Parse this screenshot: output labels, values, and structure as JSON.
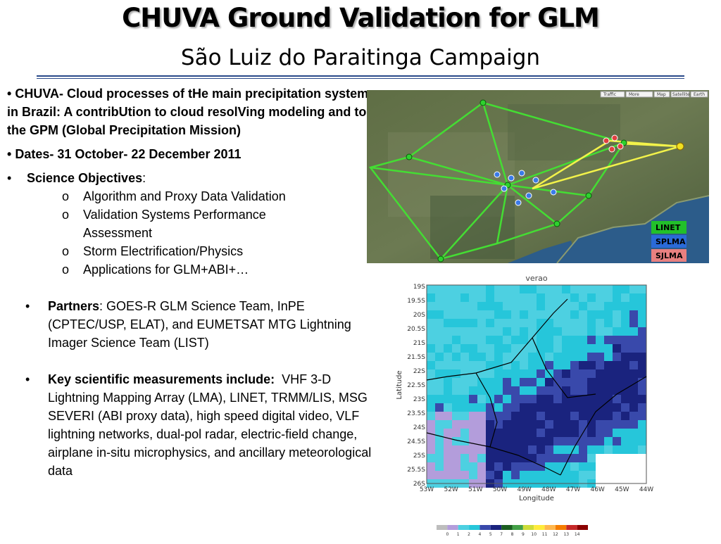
{
  "slide": {
    "title": "CHUVA Ground Validation for GLM",
    "subtitle": "São Luiz do Paraitinga Campaign"
  },
  "bullets": {
    "chuva": {
      "marker": "•",
      "label": "CHUVA- Cloud processes of tHe main precipitation systems in Brazil: A contribUtion to cloud resolVing modeling and to the GPM (Global Precipitation Mission)"
    },
    "dates": {
      "marker": "•",
      "label": "Dates- 31 October- 22 December 2011"
    },
    "science": {
      "marker": "•",
      "label": "Science Objectives",
      "colon": ":",
      "sub_marker": "o",
      "items": [
        "Algorithm and Proxy Data Validation",
        "Validation Systems Performance Assessment",
        "Storm Electrification/Physics",
        "Applications for GLM+ABI+…"
      ]
    },
    "partners": {
      "marker": "•",
      "label": "Partners",
      "text": ": GOES-R GLM Science Team, InPE (CPTEC/USP, ELAT), and EUMETSAT MTG Lightning Imager Science Team (LIST)"
    },
    "measurements": {
      "marker": "•",
      "label": "Key scientific measurements include:",
      "text": "VHF 3-D Lightning Mapping Array (LMA), LINET, TRMM/LIS, MSG SEVERI (ABI proxy data), high speed digital video, VLF lightning networks, dual-pol radar, electric-field change, airplane in-situ microphysics, and ancillary meteorological data"
    }
  },
  "map": {
    "toolbar": [
      "Traffic",
      "More",
      "Map",
      "Satellite",
      "Earth"
    ],
    "legend": [
      {
        "label": "LINET",
        "color": "#22c02a"
      },
      {
        "label": "SPLMA",
        "color": "#2a6ad8"
      },
      {
        "label": "SJLMA",
        "color": "#e88080"
      }
    ]
  },
  "heatmap": {
    "title": "verao",
    "xlabel": "Longitude",
    "ylabel": "Latitude",
    "yticks": [
      "19S",
      "19.5S",
      "20S",
      "20.5S",
      "21S",
      "21.5S",
      "22S",
      "22.5S",
      "23S",
      "23.5S",
      "24S",
      "24.5S",
      "25S",
      "25.5S",
      "26S"
    ],
    "xticks": [
      "53W",
      "52W",
      "51W",
      "50W",
      "49W",
      "48W",
      "47W",
      "46W",
      "45W",
      "44W"
    ]
  },
  "colorbar": {
    "labels": [
      "0",
      "1",
      "2",
      "4",
      "5",
      "7",
      "8",
      "9",
      "10",
      "11",
      "12",
      "13",
      "14"
    ],
    "colors": [
      "#bdbdbd",
      "#b39ddb",
      "#4dd0e1",
      "#26c6da",
      "#3949ab",
      "#1a237e",
      "#1b5e20",
      "#43a047",
      "#cddc39",
      "#ffeb3b",
      "#ffb74d",
      "#f57c00",
      "#c62828",
      "#8b0000"
    ]
  }
}
